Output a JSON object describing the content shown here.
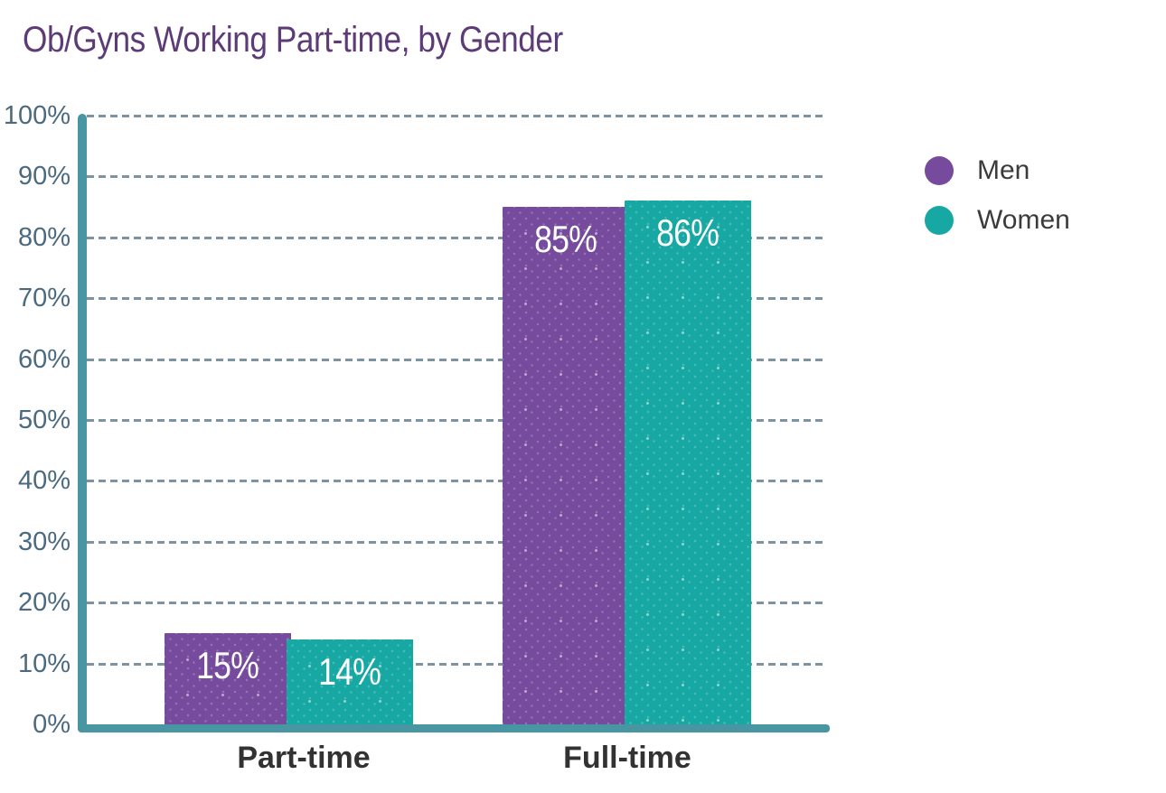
{
  "title": "Ob/Gyns Working Part-time, by Gender",
  "chart_data": {
    "type": "bar",
    "title": "Ob/Gyns Working Part-time, by Gender",
    "categories": [
      "Part-time",
      "Full-time"
    ],
    "series": [
      {
        "name": "Men",
        "color": "#764a9d",
        "values": [
          15,
          85
        ],
        "labels": [
          "15%",
          "85%"
        ]
      },
      {
        "name": "Women",
        "color": "#17a8a3",
        "values": [
          14,
          86
        ],
        "labels": [
          "14%",
          "86%"
        ]
      }
    ],
    "y_ticks": [
      "0%",
      "10%",
      "20%",
      "30%",
      "40%",
      "50%",
      "60%",
      "70%",
      "80%",
      "90%",
      "100%"
    ],
    "ylim": [
      0,
      100
    ],
    "xlabel": "",
    "ylabel": "",
    "grid": "horizontal-dashed",
    "legend_position": "right",
    "bar_texture": "diagonal-dotted"
  },
  "colors": {
    "background": "#ffffff",
    "title": "#5d3b76",
    "axis": "#4796a1",
    "gridline": "#7e93a1",
    "y_tick_label": "#4b6a80",
    "x_label": "#323232",
    "legend_label": "#3b3b3b",
    "bar_value_label": "#ffffff"
  }
}
